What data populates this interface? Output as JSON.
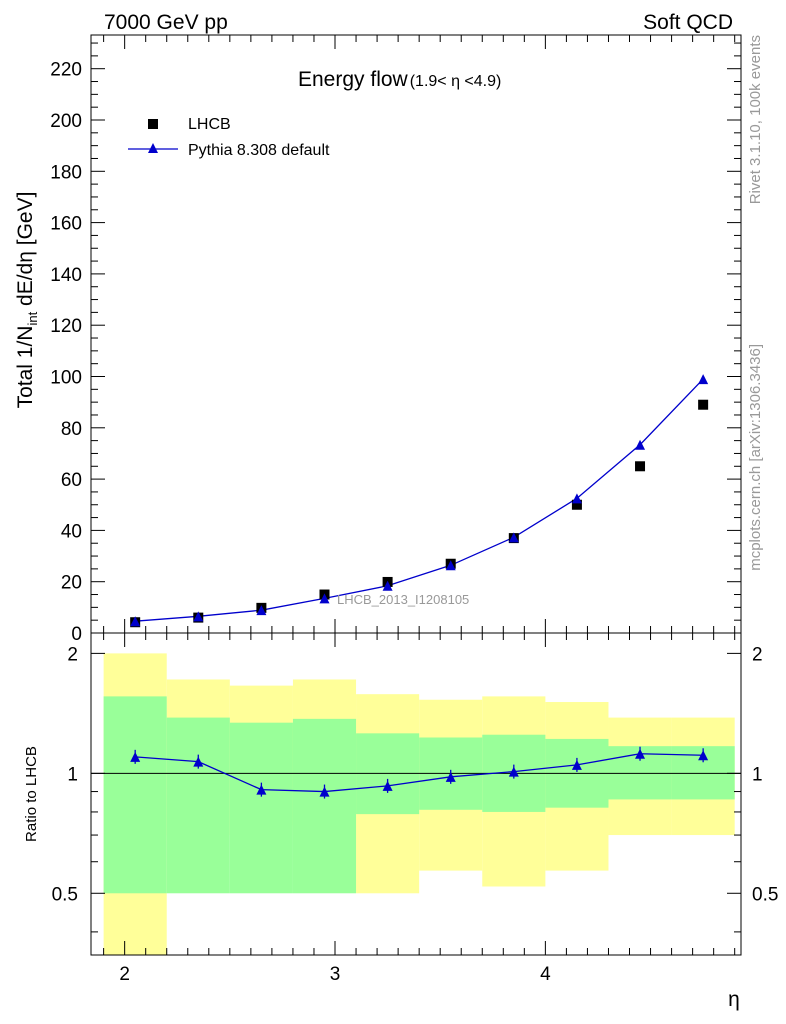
{
  "header": {
    "left": "7000 GeV pp",
    "right": "Soft QCD"
  },
  "side_labels": {
    "rivet": "Rivet 3.1.10,  100k events",
    "mcplots": "mcplots.cern.ch [arXiv:1306.3436]"
  },
  "colors": {
    "mc": "#0000cc",
    "data": "#000000",
    "band_outer": "#ffff99",
    "band_inner": "#99ff99"
  },
  "chart_data": {
    "type": "scatter",
    "title": "Energy flow",
    "title_sub": "(1.9< η <4.9)",
    "xlabel": "η",
    "ylabel": "Total 1/N",
    "ylabel_sub": "int",
    "ylabel_tail": " dE/dη [GeV]",
    "analysis_tag": "LHCB_2013_I1208105",
    "xlim": [
      1.84,
      4.93
    ],
    "ylim": [
      0,
      233
    ],
    "x_ticks": [
      "2",
      "3",
      "4"
    ],
    "y_ticks": [
      "0",
      "20",
      "40",
      "60",
      "80",
      "100",
      "120",
      "140",
      "160",
      "180",
      "200",
      "220"
    ],
    "legend": {
      "position": "top-left",
      "data_label": "LHCB",
      "mc_label": "Pythia 8.308 default"
    },
    "bins": [
      {
        "lo": 1.9,
        "hi": 2.2
      },
      {
        "lo": 2.2,
        "hi": 2.5
      },
      {
        "lo": 2.5,
        "hi": 2.8
      },
      {
        "lo": 2.8,
        "hi": 3.1
      },
      {
        "lo": 3.1,
        "hi": 3.4
      },
      {
        "lo": 3.4,
        "hi": 3.7
      },
      {
        "lo": 3.7,
        "hi": 4.0
      },
      {
        "lo": 4.0,
        "hi": 4.3
      },
      {
        "lo": 4.3,
        "hi": 4.6
      },
      {
        "lo": 4.6,
        "hi": 4.9
      }
    ],
    "x": [
      2.05,
      2.35,
      2.65,
      2.95,
      3.25,
      3.55,
      3.85,
      4.15,
      4.45,
      4.75
    ],
    "series": [
      {
        "name": "LHCB",
        "marker": "square",
        "values": [
          4.2,
          6.0,
          9.8,
          15.0,
          19.9,
          27.0,
          37.0,
          50.0,
          65.0,
          89.0
        ]
      },
      {
        "name": "Pythia 8.308 default",
        "marker": "triangle",
        "values": [
          4.6,
          6.5,
          8.9,
          13.5,
          18.4,
          26.4,
          37.3,
          52.5,
          73.4,
          99.0
        ]
      }
    ],
    "ratio": {
      "ylabel": "Ratio to LHCB",
      "ylim": [
        0.35,
        2.25
      ],
      "y_ticks": [
        "0.5",
        "1",
        "2"
      ],
      "values": [
        1.1,
        1.07,
        0.91,
        0.9,
        0.93,
        0.98,
        1.01,
        1.05,
        1.12,
        1.11
      ],
      "band_outer": [
        {
          "lo": 0.0,
          "hi": 2.0
        },
        {
          "lo": 0.7,
          "hi": 1.72
        },
        {
          "lo": 0.74,
          "hi": 1.66
        },
        {
          "lo": 0.7,
          "hi": 1.72
        },
        {
          "lo": 0.5,
          "hi": 1.58
        },
        {
          "lo": 0.57,
          "hi": 1.53
        },
        {
          "lo": 0.52,
          "hi": 1.56
        },
        {
          "lo": 0.57,
          "hi": 1.51
        },
        {
          "lo": 0.7,
          "hi": 1.38
        },
        {
          "lo": 0.7,
          "hi": 1.38
        }
      ],
      "band_inner": [
        {
          "lo": 0.5,
          "hi": 1.56
        },
        {
          "lo": 0.5,
          "hi": 1.38
        },
        {
          "lo": 0.5,
          "hi": 1.34
        },
        {
          "lo": 0.5,
          "hi": 1.37
        },
        {
          "lo": 0.79,
          "hi": 1.26
        },
        {
          "lo": 0.81,
          "hi": 1.23
        },
        {
          "lo": 0.8,
          "hi": 1.25
        },
        {
          "lo": 0.82,
          "hi": 1.22
        },
        {
          "lo": 0.86,
          "hi": 1.17
        },
        {
          "lo": 0.86,
          "hi": 1.17
        }
      ]
    }
  }
}
